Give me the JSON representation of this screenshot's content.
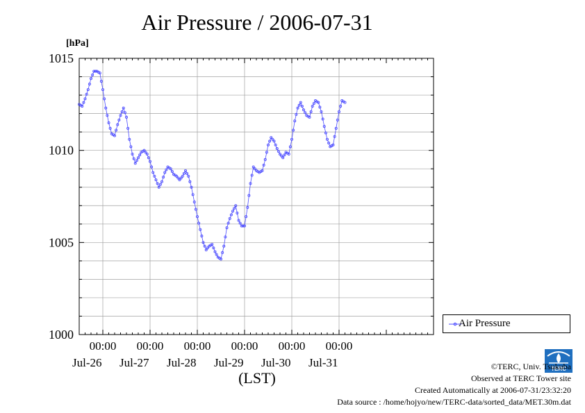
{
  "title": "Air Pressure / 2006-07-31",
  "unit_label": "[hPa]",
  "x_axis_label": "(LST)",
  "legend_label": "Air Pressure",
  "credits": {
    "copyright": "©TERC, Univ. Tsukuba",
    "observed": "Observed at TERC Tower site",
    "created": "Created Automatically at 2006-07-31/23:32:20",
    "source": "Data source : /home/hojyo/new/TERC-data/sorted_data/MET.30m.dat"
  },
  "logo_text": "TERC",
  "colors": {
    "series": "#4a4aff",
    "grid": "#a0a0a0",
    "frame": "#000000"
  },
  "chart_data": {
    "type": "line",
    "title": "Air Pressure / 2006-07-31",
    "ylabel": "[hPa]",
    "xlabel": "(LST)",
    "ylim": [
      1000,
      1015
    ],
    "xlim": [
      -12,
      168
    ],
    "x_unit": "hours since 2006-07-26 00:00 LST",
    "y_ticks": [
      1000,
      1005,
      1010,
      1015
    ],
    "x_ticks": [
      {
        "x": 0,
        "time": "00:00",
        "date": "Jul-26"
      },
      {
        "x": 24,
        "time": "00:00",
        "date": "Jul-27"
      },
      {
        "x": 48,
        "time": "00:00",
        "date": "Jul-28"
      },
      {
        "x": 72,
        "time": "00:00",
        "date": "Jul-29"
      },
      {
        "x": 96,
        "time": "00:00",
        "date": "Jul-30"
      },
      {
        "x": 120,
        "time": "00:00",
        "date": "Jul-31"
      }
    ],
    "grid": true,
    "legend_position": "bottom-right outside",
    "series": [
      {
        "name": "Air Pressure",
        "points": [
          [
            -12,
            1012.5
          ],
          [
            -10.5,
            1012.4
          ],
          [
            -9,
            1012.8
          ],
          [
            -7.5,
            1013.3
          ],
          [
            -6,
            1013.9
          ],
          [
            -4.5,
            1014.3
          ],
          [
            -3,
            1014.3
          ],
          [
            -1.5,
            1014.2
          ],
          [
            0,
            1013.3
          ],
          [
            1.5,
            1012.3
          ],
          [
            3,
            1011.5
          ],
          [
            4.5,
            1010.9
          ],
          [
            6,
            1010.8
          ],
          [
            7.5,
            1011.4
          ],
          [
            9,
            1011.9
          ],
          [
            10.5,
            1012.3
          ],
          [
            12,
            1011.8
          ],
          [
            13.5,
            1010.6
          ],
          [
            15,
            1009.8
          ],
          [
            16.5,
            1009.3
          ],
          [
            18,
            1009.6
          ],
          [
            19.5,
            1009.9
          ],
          [
            21,
            1010.0
          ],
          [
            22.5,
            1009.8
          ],
          [
            24,
            1009.4
          ],
          [
            25.5,
            1008.8
          ],
          [
            27,
            1008.4
          ],
          [
            28.5,
            1008.0
          ],
          [
            30,
            1008.3
          ],
          [
            31.5,
            1008.8
          ],
          [
            33,
            1009.1
          ],
          [
            34.5,
            1009.0
          ],
          [
            36,
            1008.7
          ],
          [
            37.5,
            1008.6
          ],
          [
            39,
            1008.4
          ],
          [
            40.5,
            1008.6
          ],
          [
            42,
            1008.9
          ],
          [
            43.5,
            1008.6
          ],
          [
            45,
            1008.0
          ],
          [
            46.5,
            1007.2
          ],
          [
            48,
            1006.4
          ],
          [
            49.5,
            1005.7
          ],
          [
            51,
            1005.0
          ],
          [
            52.5,
            1004.6
          ],
          [
            54,
            1004.8
          ],
          [
            55.5,
            1004.9
          ],
          [
            57,
            1004.5
          ],
          [
            58.5,
            1004.2
          ],
          [
            60,
            1004.1
          ],
          [
            61.5,
            1004.8
          ],
          [
            63,
            1005.8
          ],
          [
            64.5,
            1006.3
          ],
          [
            66,
            1006.7
          ],
          [
            67.5,
            1007.0
          ],
          [
            69,
            1006.2
          ],
          [
            70.5,
            1005.9
          ],
          [
            72,
            1005.9
          ],
          [
            73.5,
            1006.9
          ],
          [
            75,
            1008.2
          ],
          [
            76.5,
            1009.1
          ],
          [
            78,
            1008.9
          ],
          [
            79.5,
            1008.8
          ],
          [
            81,
            1008.9
          ],
          [
            82.5,
            1009.5
          ],
          [
            84,
            1010.3
          ],
          [
            85.5,
            1010.7
          ],
          [
            87,
            1010.5
          ],
          [
            88.5,
            1010.1
          ],
          [
            90,
            1009.8
          ],
          [
            91.5,
            1009.6
          ],
          [
            93,
            1009.9
          ],
          [
            94.5,
            1009.8
          ],
          [
            96,
            1010.6
          ],
          [
            97.5,
            1011.6
          ],
          [
            99,
            1012.3
          ],
          [
            100.5,
            1012.6
          ],
          [
            102,
            1012.2
          ],
          [
            103.5,
            1011.9
          ],
          [
            105,
            1011.8
          ],
          [
            106.5,
            1012.4
          ],
          [
            108,
            1012.7
          ],
          [
            109.5,
            1012.6
          ],
          [
            111,
            1012.1
          ],
          [
            112.5,
            1011.3
          ],
          [
            114,
            1010.6
          ],
          [
            115.5,
            1010.2
          ],
          [
            117,
            1010.3
          ],
          [
            118.5,
            1011.2
          ],
          [
            120,
            1012.1
          ],
          [
            121.5,
            1012.7
          ],
          [
            123,
            1012.6
          ]
        ]
      }
    ]
  }
}
